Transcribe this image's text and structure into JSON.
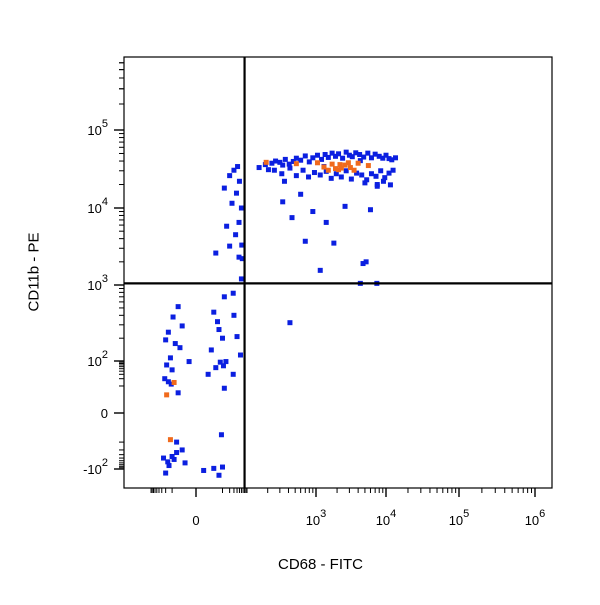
{
  "chart_data": {
    "type": "scatter",
    "xlabel": "CD68 - FITC",
    "ylabel": "CD11b - PE",
    "x_scale": "biexponential",
    "y_scale": "biexponential",
    "xlim": [
      -300,
      1000000
    ],
    "ylim": [
      -300,
      700000
    ],
    "x_ticks": [
      {
        "value": 0,
        "base": "0",
        "exp": ""
      },
      {
        "value": 1000,
        "base": "10",
        "exp": "3"
      },
      {
        "value": 10000,
        "base": "10",
        "exp": "4"
      },
      {
        "value": 100000,
        "base": "10",
        "exp": "5"
      },
      {
        "value": 1000000,
        "base": "10",
        "exp": "6"
      }
    ],
    "y_ticks": [
      {
        "value": -100,
        "base": "-10",
        "exp": "2"
      },
      {
        "value": 0,
        "base": "0",
        "exp": ""
      },
      {
        "value": 100,
        "base": "10",
        "exp": "2"
      },
      {
        "value": 1000,
        "base": "10",
        "exp": "3"
      },
      {
        "value": 10000,
        "base": "10",
        "exp": "4"
      },
      {
        "value": 100000,
        "base": "10",
        "exp": "5"
      }
    ],
    "gates": {
      "x": 80,
      "y": 1050
    },
    "grid": false,
    "legend": "none",
    "colors": {
      "series_1": "#0b1fe0",
      "series_2": "#f06a1c",
      "axes": "#000000"
    },
    "series": [
      {
        "color": "#0b1fe0",
        "points": [
          [
            -3,
            -20
          ],
          [
            -8,
            -45
          ],
          [
            -14,
            -75
          ],
          [
            4,
            -95
          ],
          [
            -20,
            -130
          ],
          [
            7,
            -150
          ],
          [
            -2,
            -60
          ],
          [
            -10,
            -35
          ],
          [
            10,
            -85
          ],
          [
            -25,
            -40
          ],
          [
            -5,
            5
          ],
          [
            -15,
            15
          ],
          [
            12,
            8
          ],
          [
            -6,
            -10
          ],
          [
            -22,
            20
          ],
          [
            2,
            30
          ],
          [
            -10,
            45
          ],
          [
            5,
            55
          ],
          [
            -18,
            70
          ],
          [
            8,
            90
          ],
          [
            -12,
            110
          ],
          [
            3,
            140
          ],
          [
            -7,
            170
          ],
          [
            10,
            200
          ],
          [
            -15,
            240
          ],
          [
            -3,
            290
          ],
          [
            6,
            330
          ],
          [
            -9,
            380
          ],
          [
            4,
            440
          ],
          [
            -5,
            520
          ],
          [
            -20,
            190
          ],
          [
            7,
            260
          ],
          [
            -1,
            95
          ],
          [
            -11,
            12
          ],
          [
            9,
            -5
          ],
          [
            -16,
            -55
          ],
          [
            1,
            -110
          ],
          [
            -6,
            -25
          ],
          [
            11,
            65
          ],
          [
            -4,
            150
          ],
          [
            12,
            700
          ],
          [
            28,
            780
          ],
          [
            55,
            120
          ],
          [
            40,
            210
          ],
          [
            28,
            30
          ],
          [
            14,
            95
          ],
          [
            60,
            1200
          ],
          [
            30,
            400
          ],
          [
            150,
            33000
          ],
          [
            185,
            36000
          ],
          [
            205,
            31000
          ],
          [
            230,
            37500
          ],
          [
            260,
            40000
          ],
          [
            300,
            38500
          ],
          [
            330,
            35500
          ],
          [
            360,
            42000
          ],
          [
            410,
            36500
          ],
          [
            470,
            39500
          ],
          [
            520,
            43500
          ],
          [
            600,
            41000
          ],
          [
            700,
            46500
          ],
          [
            800,
            39000
          ],
          [
            900,
            44000
          ],
          [
            1050,
            47500
          ],
          [
            1200,
            42000
          ],
          [
            1350,
            48500
          ],
          [
            1500,
            44500
          ],
          [
            1700,
            50500
          ],
          [
            1900,
            46000
          ],
          [
            2100,
            49500
          ],
          [
            2400,
            43500
          ],
          [
            2700,
            52000
          ],
          [
            3000,
            47500
          ],
          [
            3300,
            45500
          ],
          [
            3700,
            51000
          ],
          [
            4200,
            48500
          ],
          [
            4800,
            45000
          ],
          [
            5500,
            50500
          ],
          [
            6200,
            44000
          ],
          [
            7000,
            49000
          ],
          [
            8000,
            46000
          ],
          [
            9000,
            43500
          ],
          [
            10000,
            47500
          ],
          [
            11000,
            43000
          ],
          [
            12000,
            41500
          ],
          [
            13500,
            44000
          ],
          [
            250,
            30500
          ],
          [
            320,
            27500
          ],
          [
            420,
            32500
          ],
          [
            520,
            26000
          ],
          [
            650,
            30500
          ],
          [
            780,
            25000
          ],
          [
            950,
            28500
          ],
          [
            1150,
            26500
          ],
          [
            1400,
            29500
          ],
          [
            1650,
            24000
          ],
          [
            1950,
            27500
          ],
          [
            2300,
            25000
          ],
          [
            2700,
            30000
          ],
          [
            3200,
            23500
          ],
          [
            3800,
            28000
          ],
          [
            4500,
            26500
          ],
          [
            5300,
            23000
          ],
          [
            6200,
            27500
          ],
          [
            7200,
            25500
          ],
          [
            8400,
            30000
          ],
          [
            9600,
            24500
          ],
          [
            11000,
            28000
          ],
          [
            12500,
            30500
          ],
          [
            5000,
            21000
          ],
          [
            7500,
            19000
          ],
          [
            9200,
            22000
          ],
          [
            7500,
            20000
          ],
          [
            11500,
            19800
          ],
          [
            1300,
            34000
          ],
          [
            4300,
            40500
          ],
          [
            350,
            22000
          ],
          [
            600,
            15000
          ],
          [
            900,
            9000
          ],
          [
            450,
            7500
          ],
          [
            1400,
            6500
          ],
          [
            2600,
            10500
          ],
          [
            6000,
            9500
          ],
          [
            1800,
            3500
          ],
          [
            4700,
            1900
          ],
          [
            5200,
            2000
          ],
          [
            4300,
            1050
          ],
          [
            7400,
            1050
          ],
          [
            1150,
            1550
          ],
          [
            420,
            320
          ],
          [
            700,
            3700
          ],
          [
            330,
            12000
          ],
          [
            20,
            26000
          ],
          [
            30,
            30500
          ],
          [
            42,
            34000
          ],
          [
            50,
            22000
          ],
          [
            38,
            15500
          ],
          [
            12,
            18000
          ],
          [
            25,
            11500
          ],
          [
            60,
            10000
          ],
          [
            48,
            6500
          ],
          [
            15,
            5800
          ],
          [
            35,
            4500
          ],
          [
            62,
            3300
          ],
          [
            20,
            3200
          ],
          [
            48,
            2300
          ],
          [
            65,
            2200
          ],
          [
            5,
            2600
          ]
        ]
      },
      {
        "color": "#f06a1c",
        "points": [
          [
            -18,
            4
          ],
          [
            -12,
            -8
          ],
          [
            -8,
            14
          ],
          [
            190,
            38500
          ],
          [
            520,
            37000
          ],
          [
            1050,
            38000
          ],
          [
            1300,
            33500
          ],
          [
            1500,
            30500
          ],
          [
            1700,
            36500
          ],
          [
            2100,
            31000
          ],
          [
            2300,
            32500
          ],
          [
            2600,
            35500
          ],
          [
            2900,
            38000
          ],
          [
            3100,
            33000
          ],
          [
            3500,
            30500
          ],
          [
            2200,
            36000
          ],
          [
            1900,
            32000
          ],
          [
            4000,
            37500
          ],
          [
            5600,
            35000
          ]
        ]
      }
    ]
  }
}
